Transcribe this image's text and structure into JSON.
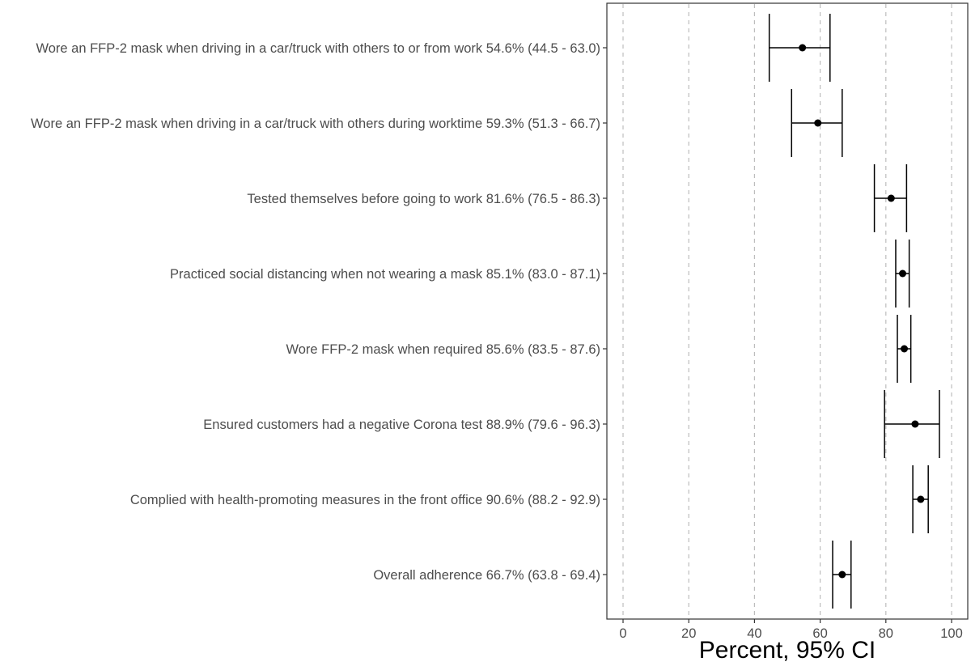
{
  "chart_data": {
    "type": "forest",
    "xlabel": "Percent, 95% CI",
    "xlim": [
      -5,
      105
    ],
    "xticks": [
      0,
      20,
      40,
      60,
      80,
      100
    ],
    "grid": "vertical dashed",
    "rows": [
      {
        "label": "Wore an FFP-2 mask when driving in a car/truck with others to or from work 54.6% (44.5 - 63.0)",
        "estimate": 54.6,
        "lower": 44.5,
        "upper": 63.0
      },
      {
        "label": "Wore an FFP-2 mask when driving in a car/truck with others during worktime 59.3% (51.3 - 66.7)",
        "estimate": 59.3,
        "lower": 51.3,
        "upper": 66.7
      },
      {
        "label": "Tested themselves before going to work 81.6% (76.5 - 86.3)",
        "estimate": 81.6,
        "lower": 76.5,
        "upper": 86.3
      },
      {
        "label": "Practiced social distancing when not wearing a mask 85.1% (83.0 - 87.1)",
        "estimate": 85.1,
        "lower": 83.0,
        "upper": 87.1
      },
      {
        "label": "Wore FFP-2 mask when required 85.6% (83.5 - 87.6)",
        "estimate": 85.6,
        "lower": 83.5,
        "upper": 87.6
      },
      {
        "label": "Ensured customers had a negative Corona test 88.9% (79.6 - 96.3)",
        "estimate": 88.9,
        "lower": 79.6,
        "upper": 96.3
      },
      {
        "label": "Complied with health-promoting measures in the front office 90.6% (88.2 - 92.9)",
        "estimate": 90.6,
        "lower": 88.2,
        "upper": 92.9
      },
      {
        "label": "Overall adherence 66.7% (63.8 - 69.4)",
        "estimate": 66.7,
        "lower": 63.8,
        "upper": 69.4
      }
    ]
  }
}
